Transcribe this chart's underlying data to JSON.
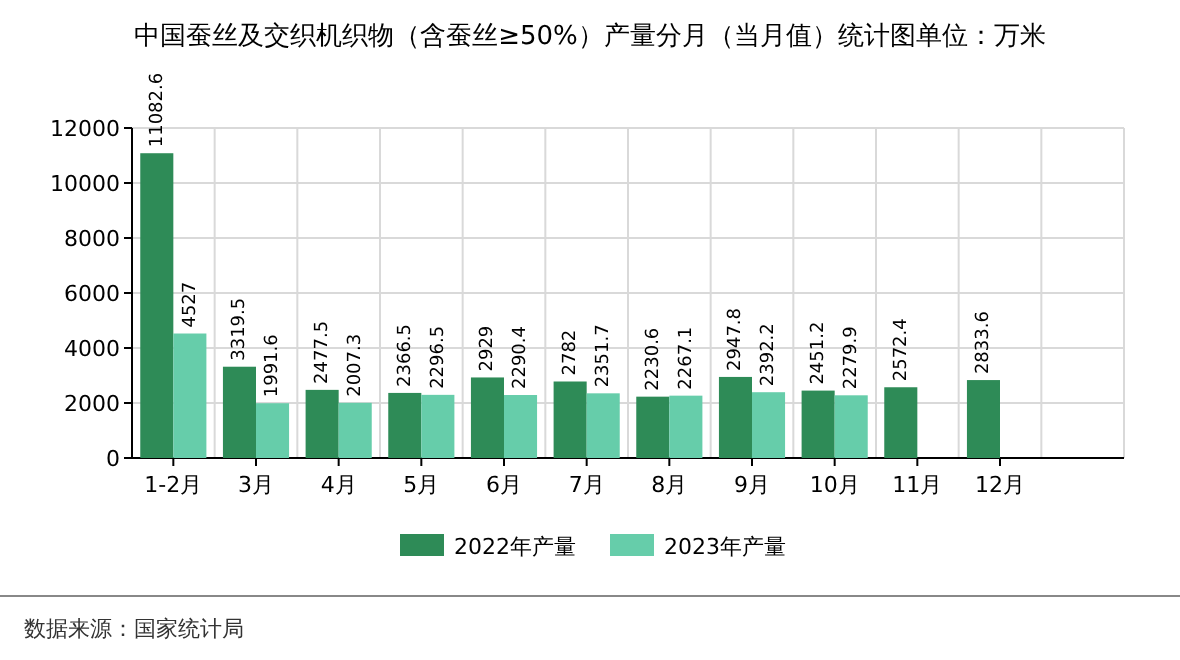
{
  "chart_data": {
    "type": "bar",
    "title": "中国蚕丝及交织机织物（含蚕丝≥50%）产量分月（当月值）统计图单位：万米",
    "categories": [
      "1-2月",
      "3月",
      "4月",
      "5月",
      "6月",
      "7月",
      "8月",
      "9月",
      "10月",
      "11月",
      "12月"
    ],
    "series": [
      {
        "name": "2022年产量",
        "color": "#2e8b57",
        "values": [
          11082.6,
          3319.5,
          2477.5,
          2366.5,
          2929,
          2782,
          2230.6,
          2947.8,
          2451.2,
          2572.4,
          2833.6
        ]
      },
      {
        "name": "2023年产量",
        "color": "#66cdaa",
        "values": [
          4527,
          1991.6,
          2007.3,
          2296.5,
          2290.4,
          2351.7,
          2267.1,
          2392.2,
          2279.9,
          null,
          null
        ]
      }
    ],
    "ylim": [
      0,
      12000
    ],
    "yticks": [
      0,
      2000,
      4000,
      6000,
      8000,
      10000,
      12000
    ],
    "grid": true,
    "legend": "bottom",
    "data_labels": true,
    "annotations": [
      "数据来源：国家统计局"
    ]
  }
}
